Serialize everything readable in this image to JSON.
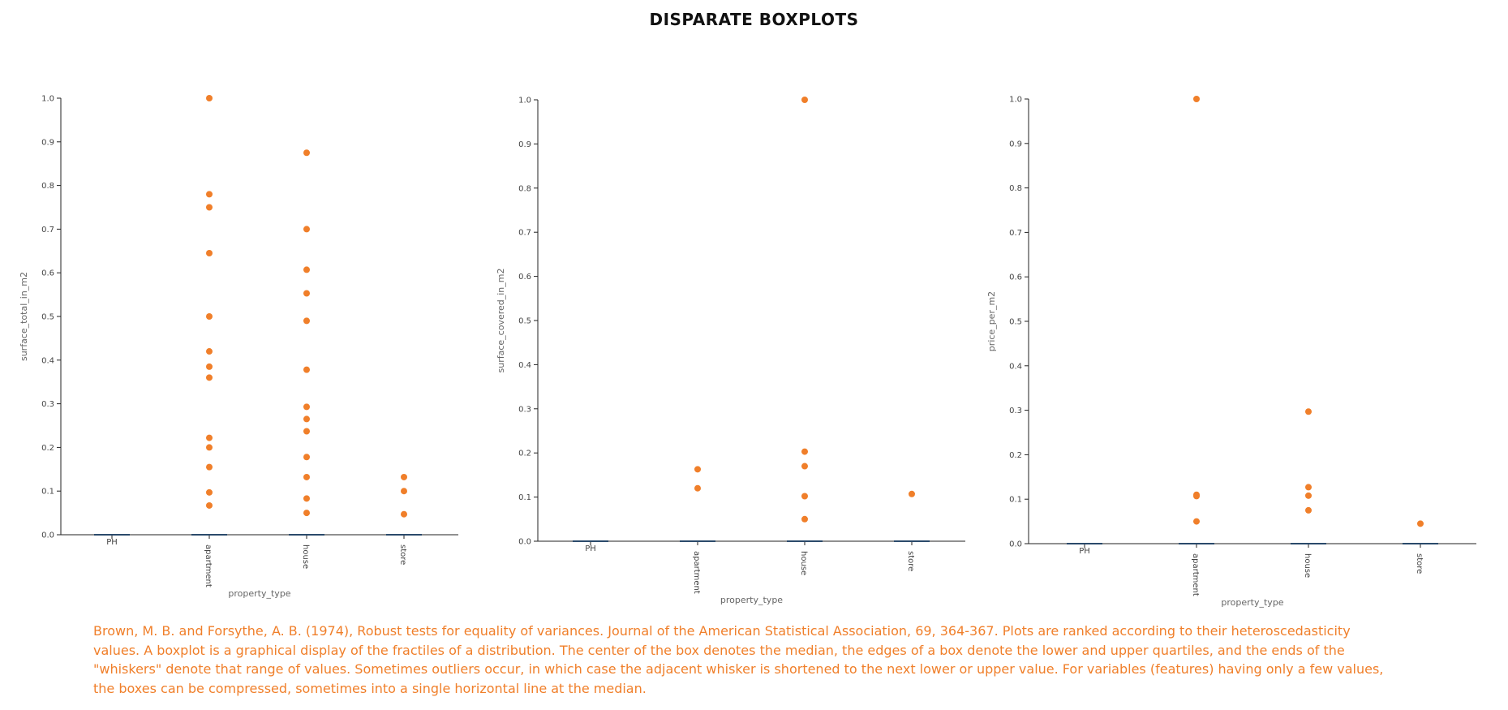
{
  "title": "DISPARATE BOXPLOTS",
  "colors": {
    "point": "#f07f2a",
    "axis": "#222222",
    "median": "#2b4a6b",
    "caption": "#f07f2a"
  },
  "caption": "Brown, M. B. and Forsythe, A. B. (1974), Robust tests for equality of variances. Journal of the American Statistical Association, 69, 364-367. Plots are ranked according to their heteroscedasticity values. A boxplot is a graphical display of the fractiles of a distribution. The center of the box denotes the median, the edges of a box denote the lower and upper quartiles, and the ends of the \"whiskers\" denote that range of values. Sometimes outliers occur, in which case the adjacent whisker is shortened to the next lower or upper value. For variables (features) having only a few values, the boxes can be compressed, sometimes into a single horizontal line at the median.",
  "chart_data": [
    {
      "type": "boxplot",
      "xlabel": "property_type",
      "ylabel": "surface_total_in_m2",
      "ylim": [
        0,
        1
      ],
      "yticks": [
        "0.0",
        "0.1",
        "0.2",
        "0.3",
        "0.4",
        "0.5",
        "0.6",
        "0.7",
        "0.8",
        "0.9",
        "1.0"
      ],
      "grid": false,
      "categories": [
        "PH",
        "apartment",
        "house",
        "store"
      ],
      "medians": [
        0,
        0,
        0,
        0
      ],
      "outliers": [
        [],
        [
          1.0,
          0.78,
          0.75,
          0.645,
          0.5,
          0.42,
          0.385,
          0.36,
          0.222,
          0.2,
          0.155,
          0.097,
          0.067
        ],
        [
          0.875,
          0.7,
          0.607,
          0.553,
          0.49,
          0.378,
          0.293,
          0.265,
          0.237,
          0.178,
          0.132,
          0.083,
          0.05
        ],
        [
          0.132,
          0.1,
          0.047
        ]
      ]
    },
    {
      "type": "boxplot",
      "xlabel": "property_type",
      "ylabel": "surface_covered_in_m2",
      "ylim": [
        0,
        1
      ],
      "yticks": [
        "0.0",
        "0.1",
        "0.2",
        "0.3",
        "0.4",
        "0.5",
        "0.6",
        "0.7",
        "0.8",
        "0.9",
        "1.0"
      ],
      "grid": false,
      "categories": [
        "PH",
        "apartment",
        "house",
        "store"
      ],
      "medians": [
        0,
        0,
        0,
        0
      ],
      "outliers": [
        [],
        [
          0.163,
          0.12
        ],
        [
          1.0,
          0.203,
          0.17,
          0.102,
          0.05
        ],
        [
          0.107
        ]
      ]
    },
    {
      "type": "boxplot",
      "xlabel": "property_type",
      "ylabel": "price_per_m2",
      "ylim": [
        0,
        1
      ],
      "yticks": [
        "0.0",
        "0.1",
        "0.2",
        "0.3",
        "0.4",
        "0.5",
        "0.6",
        "0.7",
        "0.8",
        "0.9",
        "1.0"
      ],
      "grid": false,
      "categories": [
        "PH",
        "apartment",
        "house",
        "store"
      ],
      "medians": [
        0,
        0,
        0,
        0
      ],
      "outliers": [
        [],
        [
          1.0,
          0.11,
          0.107,
          0.05
        ],
        [
          0.297,
          0.127,
          0.108,
          0.075
        ],
        [
          0.045
        ]
      ]
    }
  ]
}
